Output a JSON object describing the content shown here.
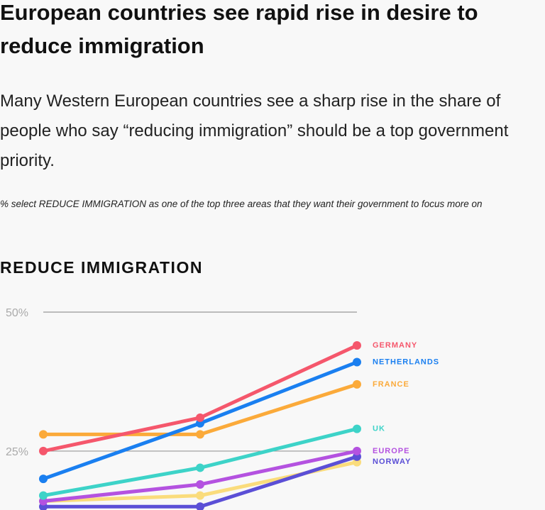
{
  "chart_data": {
    "type": "line",
    "title": "European countries see rapid rise in desire to reduce immigration",
    "subtitle": "Many Western European countries see a sharp rise in the share of people who say “reducing immigration” should be a top government priority.",
    "note": "% select REDUCE IMMIGRATION as one of the top three areas that they want their government to focus more on",
    "chart_title": "REDUCE IMMIGRATION",
    "categories": [
      null,
      null,
      null
    ],
    "ylim": [
      14.4,
      50
    ],
    "yticks": [
      {
        "value": 25,
        "label": "25%"
      },
      {
        "value": 50,
        "label": "50%"
      }
    ],
    "grid": true,
    "series": [
      {
        "color": "#fadc7c",
        "values": [
          16,
          17,
          23
        ]
      },
      {
        "name": "NORWAY",
        "color": "#5b4fd6",
        "values": [
          15,
          15,
          24
        ]
      },
      {
        "name": "EUROPE",
        "color": "#b452e0",
        "values": [
          16,
          19,
          25
        ]
      },
      {
        "name": "UK",
        "color": "#3dd3c8",
        "values": [
          17,
          22,
          29
        ]
      },
      {
        "name": "FRANCE",
        "color": "#fbaa3a",
        "values": [
          28,
          28,
          37
        ]
      },
      {
        "name": "NETHERLANDS",
        "color": "#1a7ff0",
        "values": [
          20,
          30,
          41
        ]
      },
      {
        "name": "GERMANY",
        "color": "#f5576c",
        "values": [
          25,
          31,
          44
        ]
      }
    ]
  }
}
